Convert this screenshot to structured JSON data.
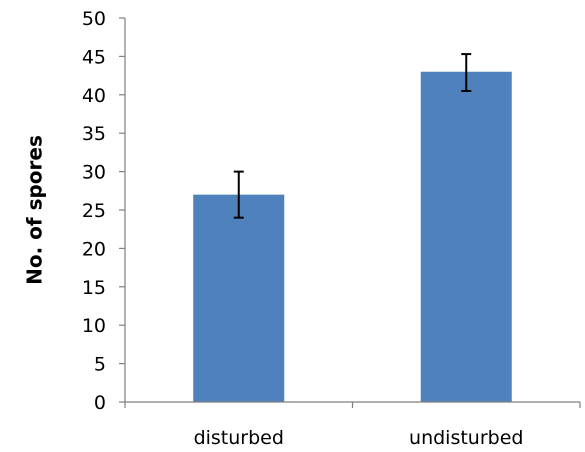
{
  "chart_data": {
    "type": "bar",
    "title": "",
    "xlabel": "",
    "ylabel": "No. of spores",
    "categories": [
      "disturbed",
      "undisturbed"
    ],
    "values": [
      27,
      43
    ],
    "error_low": [
      24,
      40.5
    ],
    "error_high": [
      30,
      45.3
    ],
    "ylim": [
      0,
      50
    ],
    "y_ticks": [
      0,
      5,
      10,
      15,
      20,
      25,
      30,
      35,
      40,
      45,
      50
    ],
    "bar_color": "#4f81bd",
    "grid": false,
    "legend": "none"
  }
}
